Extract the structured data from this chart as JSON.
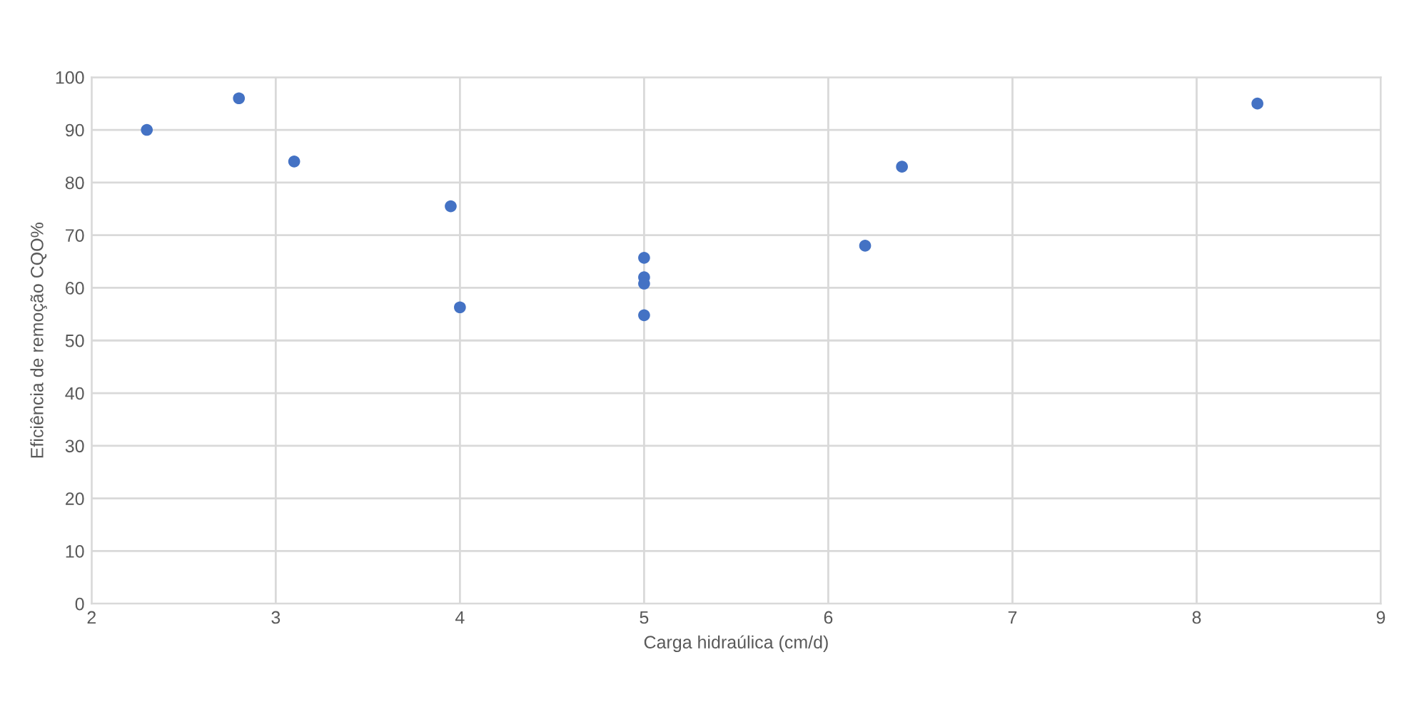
{
  "chart_data": {
    "type": "scatter",
    "xlabel": "Carga hidraúlica (cm/d)",
    "ylabel": "Eficiência de remoção CQO%",
    "x": [
      2.3,
      2.8,
      3.1,
      3.95,
      4.0,
      5.0,
      5.0,
      5.0,
      5.0,
      6.2,
      6.4,
      8.33
    ],
    "series": [
      {
        "color": "#4472c4",
        "values": [
          90,
          96,
          84,
          75.5,
          56.3,
          65.7,
          62,
          60.8,
          54.8,
          68,
          83,
          95
        ]
      }
    ],
    "xlim": [
      2,
      9
    ],
    "xticks": [
      2,
      3,
      4,
      5,
      6,
      7,
      8,
      9
    ],
    "ylim": [
      0,
      100
    ],
    "yticks": [
      0,
      10,
      20,
      30,
      40,
      50,
      60,
      70,
      80,
      90,
      100
    ],
    "grid": true,
    "marker": "circle",
    "legend": false
  }
}
